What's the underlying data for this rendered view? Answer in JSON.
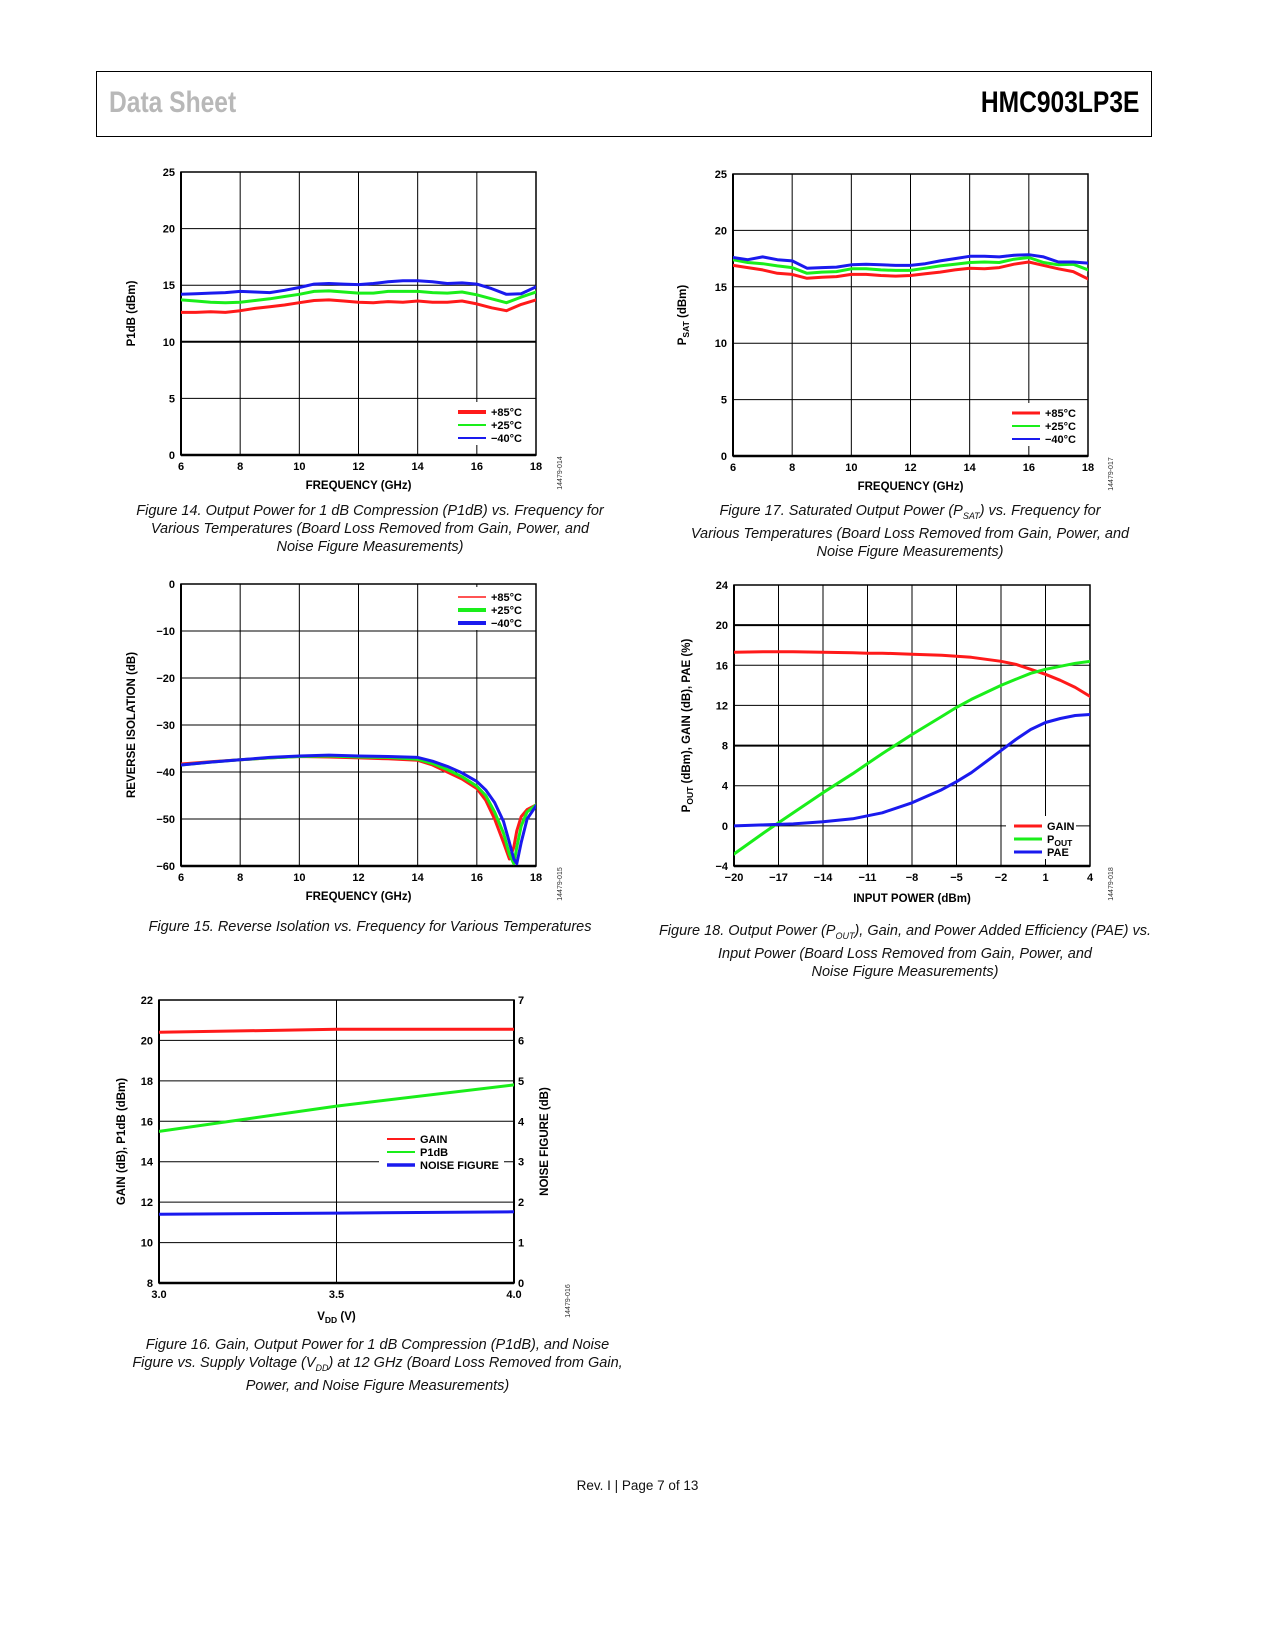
{
  "header": {
    "left_title": "Data Sheet",
    "right_title": "HMC903LP3E"
  },
  "footer": {
    "text": "Rev. I | Page 7 of 13"
  },
  "captions": {
    "fig14": [
      "Figure 14. Output Power for 1 dB Compression (P1dB) vs. Frequency for",
      "Various Temperatures (Board Loss Removed from Gain, Power, and",
      "Noise Figure Measurements)"
    ],
    "fig15": [
      "Figure 15. Reverse Isolation vs. Frequency for Various Temperatures"
    ],
    "fig16": [
      "Figure 16. Gain, Output Power for 1 dB Compression (P1dB), and Noise",
      "Figure vs. Supply Voltage (V_DD) at 12 GHz (Board Loss Removed from Gain,",
      "Power, and Noise Figure Measurements)"
    ],
    "fig17": [
      "Figure 17. Saturated Output Power (P_SAT) vs. Frequency for",
      "Various Temperatures (Board Loss Removed from Gain, Power, and",
      "Noise Figure Measurements)"
    ],
    "fig18": [
      "Figure 18. Output Power (P_OUT), Gain, and Power Added Efficiency (PAE) vs.",
      "Input Power (Board Loss Removed from Gain, Power, and",
      "Noise Figure Measurements)"
    ]
  },
  "colors": {
    "red": "#ff1a1a",
    "green": "#1aee1a",
    "blue": "#1a1aee",
    "grid": "#000000"
  },
  "chart_data": [
    {
      "id": "fig14",
      "type": "line",
      "title": "Figure 14. Output Power for 1 dB Compression (P1dB) vs. Frequency for Various Temperatures",
      "xlabel": "FREQUENCY (GHz)",
      "ylabel": "P1dB (dBm)",
      "xlim": [
        6,
        18
      ],
      "ylim": [
        0,
        25
      ],
      "xticks": [
        6,
        8,
        10,
        12,
        14,
        16,
        18
      ],
      "yticks": [
        0,
        5,
        10,
        15,
        20,
        25
      ],
      "grid": true,
      "legend_position": "bottom-right",
      "figure_code": "14479-014",
      "x": [
        6,
        6.5,
        7,
        7.5,
        8,
        8.5,
        9,
        9.5,
        10,
        10.5,
        11,
        11.5,
        12,
        12.5,
        13,
        13.5,
        14,
        14.5,
        15,
        15.5,
        16,
        16.5,
        17,
        17.5,
        18
      ],
      "series": [
        {
          "name": "+85°C",
          "color": "red",
          "values": [
            12.6,
            12.6,
            12.65,
            12.6,
            12.75,
            12.95,
            13.1,
            13.25,
            13.45,
            13.65,
            13.7,
            13.6,
            13.5,
            13.45,
            13.55,
            13.5,
            13.6,
            13.5,
            13.5,
            13.6,
            13.35,
            13.0,
            12.75,
            13.3,
            13.7
          ]
        },
        {
          "name": "+25°C",
          "color": "green",
          "values": [
            13.7,
            13.6,
            13.5,
            13.45,
            13.5,
            13.65,
            13.8,
            14.0,
            14.2,
            14.45,
            14.5,
            14.4,
            14.3,
            14.3,
            14.45,
            14.45,
            14.45,
            14.35,
            14.3,
            14.4,
            14.15,
            13.8,
            13.45,
            13.95,
            14.4
          ]
        },
        {
          "name": "−40°C",
          "color": "blue",
          "values": [
            14.2,
            14.25,
            14.3,
            14.35,
            14.45,
            14.4,
            14.35,
            14.55,
            14.8,
            15.1,
            15.15,
            15.1,
            15.05,
            15.15,
            15.3,
            15.4,
            15.4,
            15.3,
            15.15,
            15.2,
            15.1,
            14.7,
            14.2,
            14.25,
            14.85
          ]
        }
      ]
    },
    {
      "id": "fig15",
      "type": "line",
      "title": "Figure 15. Reverse Isolation vs. Frequency for Various Temperatures",
      "xlabel": "FREQUENCY (GHz)",
      "ylabel": "REVERSE ISOLATION (dB)",
      "xlim": [
        6,
        18
      ],
      "ylim": [
        -60,
        0
      ],
      "xticks": [
        6,
        8,
        10,
        12,
        14,
        16,
        18
      ],
      "yticks": [
        -60,
        -50,
        -40,
        -30,
        -20,
        -10,
        0
      ],
      "ytick_labels": [
        "−60",
        "−50",
        "−40",
        "−30",
        "−20",
        "−10",
        "0"
      ],
      "grid": true,
      "legend_position": "top-right",
      "figure_code": "14479-015",
      "x": [
        6,
        7,
        8,
        9,
        10,
        11,
        12,
        13,
        14,
        14.5,
        15,
        15.5,
        16,
        16.3,
        16.6,
        16.9,
        17.1,
        17.25,
        17.35,
        17.5,
        17.7,
        18
      ],
      "series": [
        {
          "name": "+85°C",
          "color": "red",
          "values": [
            -38.3,
            -37.8,
            -37.4,
            -37.0,
            -36.7,
            -36.8,
            -37.0,
            -37.2,
            -37.5,
            -38.5,
            -40.0,
            -41.5,
            -43.5,
            -46.0,
            -50.0,
            -55.0,
            -58.5,
            -56.0,
            -52.5,
            -49.5,
            -48.0,
            -47.0
          ]
        },
        {
          "name": "+25°C",
          "color": "green",
          "values": [
            -38.5,
            -37.9,
            -37.4,
            -37.0,
            -36.7,
            -36.6,
            -36.8,
            -36.9,
            -37.3,
            -38.2,
            -39.5,
            -41.0,
            -43.0,
            -45.0,
            -48.5,
            -53.0,
            -57.5,
            -59.5,
            -56.0,
            -51.5,
            -48.5,
            -47.0
          ]
        },
        {
          "name": "−40°C",
          "color": "blue",
          "values": [
            -38.5,
            -37.9,
            -37.4,
            -36.9,
            -36.6,
            -36.4,
            -36.6,
            -36.7,
            -36.9,
            -37.7,
            -38.8,
            -40.2,
            -42.0,
            -43.8,
            -46.5,
            -50.5,
            -55.0,
            -58.5,
            -59.5,
            -55.0,
            -50.0,
            -47.2
          ]
        }
      ]
    },
    {
      "id": "fig16",
      "type": "line",
      "title": "Figure 16. Gain, P1dB, and Noise Figure vs. Supply Voltage (VDD) at 12 GHz",
      "xlabel": "V_DD (V)",
      "ylabel": "GAIN (dB), P1dB (dBm)",
      "ylabel_right": "NOISE FIGURE (dB)",
      "xlim": [
        3.0,
        4.0
      ],
      "ylim": [
        8,
        22
      ],
      "ylim_right": [
        0,
        7
      ],
      "xticks": [
        3.0,
        3.5,
        4.0
      ],
      "xtick_labels": [
        "3.0",
        "3.5",
        "4.0"
      ],
      "yticks": [
        8,
        10,
        12,
        14,
        16,
        18,
        20,
        22
      ],
      "yticks_right": [
        0,
        1,
        2,
        3,
        4,
        5,
        6,
        7
      ],
      "grid": true,
      "legend_position": "center-right",
      "figure_code": "14479-016",
      "x": [
        3.0,
        3.5,
        4.0
      ],
      "series": [
        {
          "name": "GAIN",
          "color": "red",
          "axis": "left",
          "values": [
            20.4,
            20.55,
            20.55
          ]
        },
        {
          "name": "P1dB",
          "color": "green",
          "axis": "left",
          "values": [
            15.5,
            16.75,
            17.8
          ]
        },
        {
          "name": "NOISE FIGURE",
          "color": "blue",
          "axis": "right",
          "values": [
            1.7,
            1.73,
            1.76
          ]
        }
      ]
    },
    {
      "id": "fig17",
      "type": "line",
      "title": "Figure 17. Saturated Output Power (PSAT) vs. Frequency for Various Temperatures",
      "xlabel": "FREQUENCY (GHz)",
      "ylabel": "P_SAT (dBm)",
      "xlim": [
        6,
        18
      ],
      "ylim": [
        0,
        25
      ],
      "xticks": [
        6,
        8,
        10,
        12,
        14,
        16,
        18
      ],
      "yticks": [
        0,
        5,
        10,
        15,
        20,
        25
      ],
      "grid": true,
      "legend_position": "bottom-right",
      "figure_code": "14479-017",
      "x": [
        6,
        6.5,
        7,
        7.5,
        8,
        8.5,
        9,
        9.5,
        10,
        10.5,
        11,
        11.5,
        12,
        12.5,
        13,
        13.5,
        14,
        14.5,
        15,
        15.5,
        16,
        16.5,
        17,
        17.5,
        18
      ],
      "series": [
        {
          "name": "+85°C",
          "color": "red",
          "values": [
            16.9,
            16.7,
            16.5,
            16.2,
            16.1,
            15.75,
            15.85,
            15.9,
            16.1,
            16.1,
            16.0,
            15.95,
            16.0,
            16.15,
            16.3,
            16.5,
            16.65,
            16.6,
            16.7,
            17.0,
            17.2,
            16.9,
            16.6,
            16.35,
            15.7
          ]
        },
        {
          "name": "+25°C",
          "color": "green",
          "values": [
            17.4,
            17.15,
            17.05,
            16.85,
            16.7,
            16.2,
            16.3,
            16.35,
            16.6,
            16.6,
            16.5,
            16.45,
            16.45,
            16.65,
            16.85,
            17.0,
            17.15,
            17.2,
            17.15,
            17.45,
            17.6,
            17.15,
            16.95,
            17.0,
            16.5
          ]
        },
        {
          "name": "−40°C",
          "color": "blue",
          "values": [
            17.6,
            17.4,
            17.65,
            17.4,
            17.3,
            16.65,
            16.7,
            16.75,
            16.95,
            17.0,
            16.95,
            16.9,
            16.9,
            17.05,
            17.3,
            17.5,
            17.7,
            17.7,
            17.65,
            17.8,
            17.85,
            17.65,
            17.2,
            17.2,
            17.1
          ]
        }
      ]
    },
    {
      "id": "fig18",
      "type": "line",
      "title": "Figure 18. Output Power (POUT), Gain, and PAE vs. Input Power",
      "xlabel": "INPUT POWER (dBm)",
      "ylabel": "P_OUT (dBm), GAIN (dB), PAE (%)",
      "xlim": [
        -20,
        4
      ],
      "ylim": [
        -4,
        24
      ],
      "xticks": [
        -20,
        -17,
        -14,
        -11,
        -8,
        -5,
        -2,
        1,
        4
      ],
      "xtick_labels": [
        "−20",
        "−17",
        "−14",
        "−11",
        "−8",
        "−5",
        "−2",
        "1",
        "4"
      ],
      "yticks": [
        -4,
        0,
        4,
        8,
        12,
        16,
        20,
        24
      ],
      "ytick_labels": [
        "−4",
        "0",
        "4",
        "8",
        "12",
        "16",
        "20",
        "24"
      ],
      "grid": true,
      "legend_position": "bottom-right",
      "figure_code": "14479-018",
      "x": [
        -20,
        -18,
        -17,
        -16,
        -14,
        -12,
        -11,
        -10,
        -8,
        -6,
        -5,
        -4,
        -2,
        -1,
        0,
        1,
        2,
        3,
        4
      ],
      "series": [
        {
          "name": "GAIN",
          "color": "red",
          "values": [
            17.3,
            17.35,
            17.35,
            17.35,
            17.3,
            17.25,
            17.2,
            17.2,
            17.1,
            17.0,
            16.9,
            16.8,
            16.4,
            16.1,
            15.6,
            15.1,
            14.5,
            13.8,
            12.9
          ]
        },
        {
          "name": "P_OUT",
          "color": "green",
          "values": [
            -2.8,
            -0.7,
            0.3,
            1.3,
            3.3,
            5.2,
            6.2,
            7.2,
            9.1,
            10.9,
            11.8,
            12.6,
            14.0,
            14.6,
            15.2,
            15.6,
            15.9,
            16.2,
            16.4
          ]
        },
        {
          "name": "PAE",
          "color": "blue",
          "values": [
            0.0,
            0.1,
            0.15,
            0.2,
            0.4,
            0.7,
            1.0,
            1.3,
            2.3,
            3.6,
            4.4,
            5.3,
            7.5,
            8.6,
            9.6,
            10.3,
            10.7,
            11.0,
            11.1
          ]
        }
      ]
    }
  ]
}
